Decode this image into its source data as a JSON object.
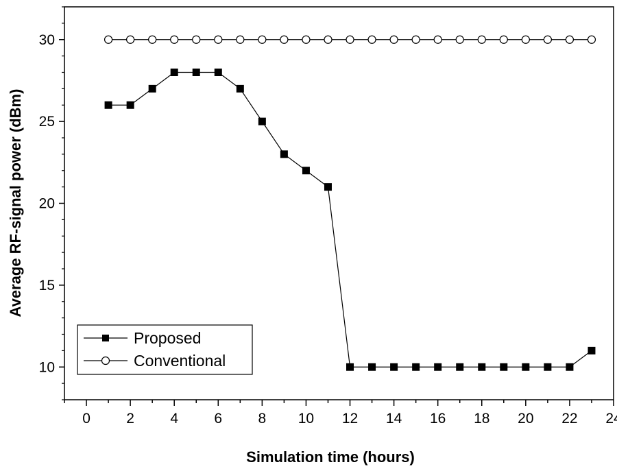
{
  "chart_data": {
    "type": "line",
    "xlabel": "Simulation time (hours)",
    "ylabel": "Average RF-signal power (dBm)",
    "xlim": [
      -1,
      24
    ],
    "ylim": [
      8,
      32
    ],
    "xticks_major": [
      0,
      2,
      4,
      6,
      8,
      10,
      12,
      14,
      16,
      18,
      20,
      22,
      24
    ],
    "xticks_minor": [
      -1,
      1,
      3,
      5,
      7,
      9,
      11,
      13,
      15,
      17,
      19,
      21,
      23
    ],
    "yticks": [
      10,
      15,
      20,
      25,
      30
    ],
    "legend_position": "bottom-left",
    "series": [
      {
        "name": "Proposed",
        "marker": "filled-square",
        "color": "#000000",
        "x": [
          1,
          2,
          3,
          4,
          5,
          6,
          7,
          8,
          9,
          10,
          11,
          12,
          13,
          14,
          15,
          16,
          17,
          18,
          19,
          20,
          21,
          22,
          23
        ],
        "values": [
          26,
          26,
          27,
          28,
          28,
          28,
          27,
          25,
          23,
          22,
          21,
          10,
          10,
          10,
          10,
          10,
          10,
          10,
          10,
          10,
          10,
          10,
          11
        ]
      },
      {
        "name": "Conventional",
        "marker": "open-circle",
        "color": "#000000",
        "x": [
          1,
          2,
          3,
          4,
          5,
          6,
          7,
          8,
          9,
          10,
          11,
          12,
          13,
          14,
          15,
          16,
          17,
          18,
          19,
          20,
          21,
          22,
          23
        ],
        "values": [
          30,
          30,
          30,
          30,
          30,
          30,
          30,
          30,
          30,
          30,
          30,
          30,
          30,
          30,
          30,
          30,
          30,
          30,
          30,
          30,
          30,
          30,
          30
        ]
      }
    ]
  }
}
